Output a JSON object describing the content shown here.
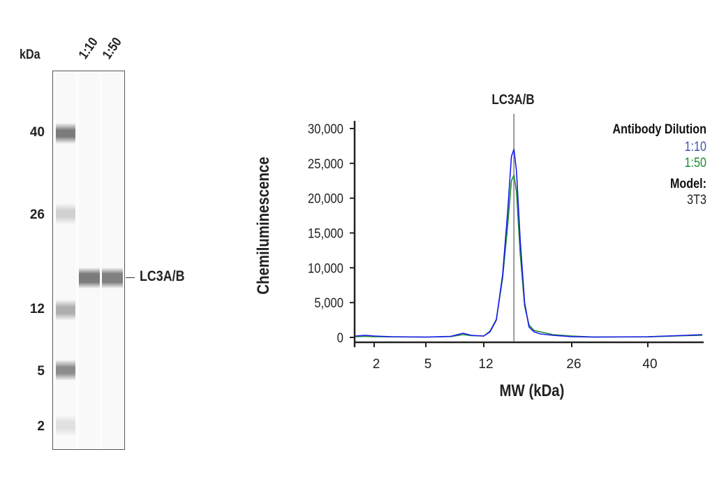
{
  "blot": {
    "unit_label": "kDa",
    "lanes": [
      "1:10",
      "1:50"
    ],
    "ladder": [
      {
        "label": "40",
        "intensity": 0.75
      },
      {
        "label": "26",
        "intensity": 0.25
      },
      {
        "label": "12",
        "intensity": 0.45
      },
      {
        "label": "5",
        "intensity": 0.65
      },
      {
        "label": "2",
        "intensity": 0.15
      }
    ],
    "target_label": "LC3A/B",
    "sample_band_intensity": [
      0.75,
      0.72
    ]
  },
  "chart_data": {
    "type": "line",
    "title": "LC3A/B",
    "xlabel": "MW (kDa)",
    "ylabel": "Chemiluminescence",
    "xticks": [
      2,
      5,
      12,
      26,
      40
    ],
    "yticks": [
      0,
      5000,
      10000,
      15000,
      20000,
      25000,
      30000
    ],
    "ytick_labels": [
      "0",
      "5,000",
      "10,000",
      "15,000",
      "20,000",
      "25,000",
      "30,000"
    ],
    "xlim": [
      0.9,
      50
    ],
    "ylim": [
      0,
      31000
    ],
    "grid": false,
    "marker_line_kDa": 16.8,
    "legend": {
      "title": "Antibody Dilution",
      "position": "top-right",
      "model_label": "Model:",
      "model_value": "3T3"
    },
    "series": [
      {
        "name": "1:10",
        "color": "#1a1aee",
        "label_color": "#3b55a8",
        "x": [
          0.9,
          1.5,
          2,
          3,
          5,
          8,
          9.5,
          10.5,
          12,
          13,
          14,
          15,
          15.8,
          16.4,
          16.8,
          17.2,
          17.8,
          18.5,
          19.2,
          20,
          21,
          23,
          26,
          30,
          40,
          47,
          50
        ],
        "y": [
          200,
          300,
          200,
          100,
          50,
          150,
          600,
          300,
          200,
          800,
          2500,
          9000,
          18000,
          26000,
          27000,
          24000,
          14000,
          5000,
          1500,
          800,
          500,
          300,
          100,
          50,
          100,
          300,
          400
        ]
      },
      {
        "name": "1:50",
        "color": "#1e8a2e",
        "label_color": "#1e8a2e",
        "x": [
          0.9,
          1.5,
          2,
          3,
          5,
          8,
          9.5,
          10.5,
          12,
          13,
          14,
          15,
          15.8,
          16.4,
          16.8,
          17.2,
          17.8,
          18.5,
          19.2,
          20,
          21.5,
          23,
          26,
          30,
          40,
          47,
          50
        ],
        "y": [
          100,
          150,
          100,
          80,
          50,
          120,
          400,
          250,
          200,
          900,
          2600,
          8500,
          16000,
          22500,
          23300,
          21000,
          12000,
          4500,
          1800,
          1000,
          700,
          400,
          200,
          60,
          80,
          250,
          300
        ]
      }
    ]
  }
}
